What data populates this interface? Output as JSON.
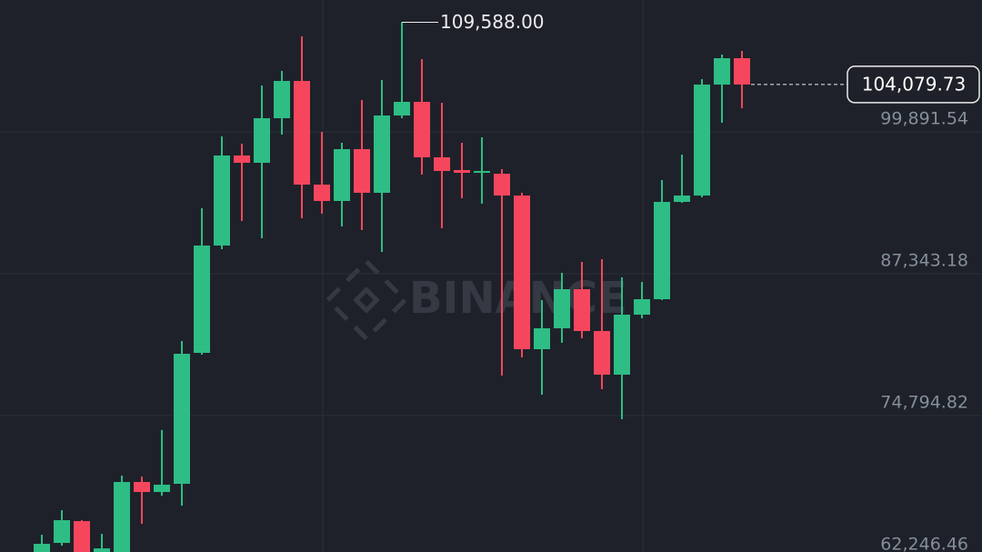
{
  "chart_data": {
    "type": "candlestick",
    "watermark": "BINANCE",
    "up_color": "#2ebd85",
    "down_color": "#f6465d",
    "grid": true,
    "ylim": [
      61000,
      111555
    ],
    "yticks": [
      {
        "value": 62246.46,
        "label": "62,246.46"
      },
      {
        "value": 74794.82,
        "label": "74,794.82"
      },
      {
        "value": 87343.18,
        "label": "87,343.18"
      },
      {
        "value": 99891.54,
        "label": "99,891.54"
      }
    ],
    "high_marker": {
      "value": 109588,
      "label": "109,588.00"
    },
    "last_price": {
      "value": 104079.73,
      "label": "104,079.73"
    },
    "open": [
      62486,
      63532,
      65463,
      62728,
      62486,
      68922,
      68037,
      68761,
      80344,
      89836,
      97800,
      97156,
      101098,
      104396,
      95226,
      93778,
      98363,
      94502,
      101339,
      102546,
      97639,
      96513,
      96271,
      96191,
      94260,
      80666,
      82516,
      85975,
      82275,
      78414,
      83723,
      85090,
      93697,
      94260,
      104074,
      106407
    ],
    "high": [
      64256,
      66428,
      65543,
      64336,
      69485,
      69404,
      73520,
      81390,
      93134,
      99489,
      98845,
      103994,
      105281,
      108337,
      99892,
      98926,
      102707,
      104476,
      109588,
      106326,
      102465,
      98926,
      99409,
      96593,
      94502,
      85010,
      87423,
      88388,
      88630,
      87020,
      86618,
      95628,
      97880,
      104557,
      106729,
      107050
    ],
    "low": [
      62084,
      63291,
      62084,
      62486,
      62486,
      65221,
      67715,
      66830,
      80183,
      89515,
      92008,
      90480,
      99650,
      92249,
      92651,
      91525,
      91204,
      89273,
      101098,
      96111,
      91365,
      94019,
      93537,
      78333,
      79942,
      76644,
      81229,
      81631,
      77126,
      74472,
      83401,
      85010,
      93617,
      94100,
      100695,
      101983
    ],
    "close": [
      63452,
      65543,
      62486,
      63050,
      68922,
      68037,
      68680,
      80264,
      89836,
      97800,
      97156,
      101098,
      104396,
      95226,
      93778,
      98363,
      94502,
      101339,
      102546,
      97639,
      96432,
      96271,
      96432,
      94260,
      80666,
      82516,
      85975,
      82275,
      78414,
      83723,
      85090,
      93697,
      94260,
      104074,
      106407,
      104079.73
    ]
  }
}
